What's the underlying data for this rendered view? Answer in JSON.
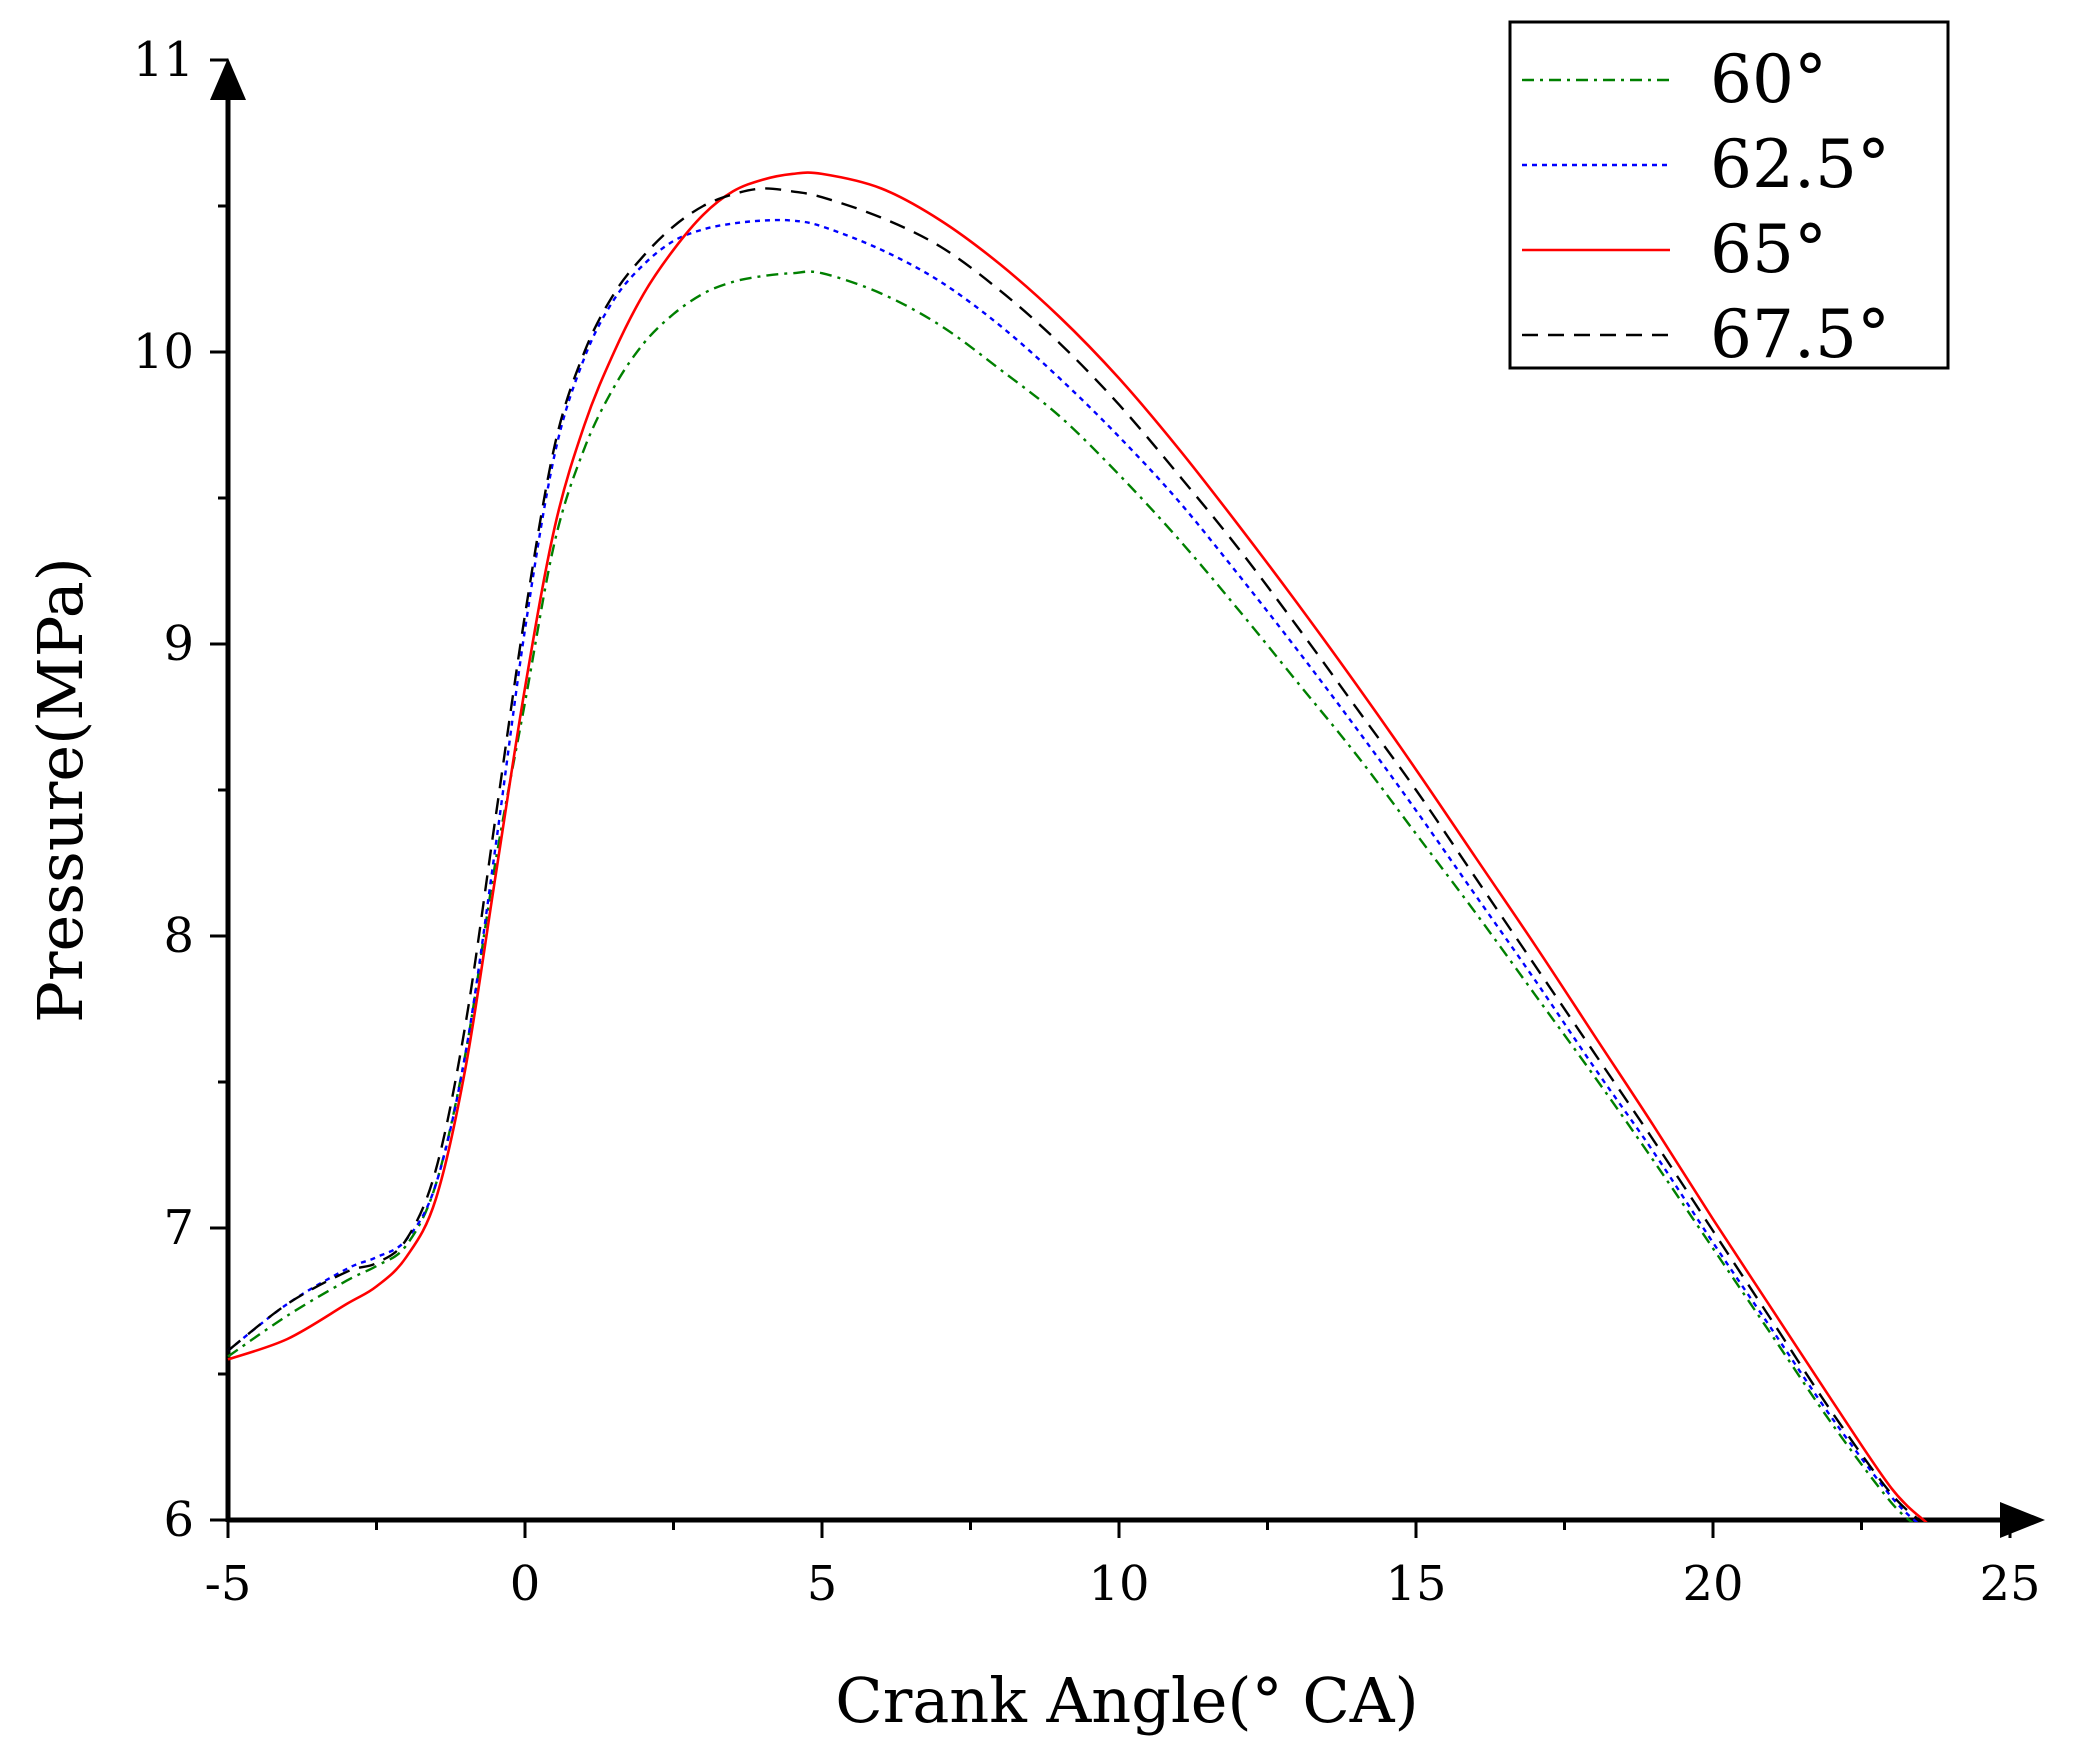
{
  "chart_data": {
    "type": "line",
    "title": "",
    "xlabel": "Crank Angle(° CA)",
    "ylabel": "Pressure(MPa)",
    "xlim": [
      -5,
      25
    ],
    "ylim": [
      6,
      11
    ],
    "xticks": [
      -5,
      0,
      5,
      10,
      15,
      20,
      25
    ],
    "xtick_labels": [
      "-5",
      "0",
      "5",
      "10",
      "15",
      "20",
      "25"
    ],
    "yticks": [
      6,
      7,
      8,
      9,
      10,
      11
    ],
    "ytick_labels": [
      "6",
      "7",
      "8",
      "9",
      "10",
      "11"
    ],
    "grid": false,
    "legend_position": "top-right",
    "series": [
      {
        "name": "60°",
        "color": "#008000",
        "dash": "dashdot",
        "x": [
          -5,
          -4,
          -3,
          -2.5,
          -2,
          -1.5,
          -1,
          -0.5,
          0,
          0.5,
          1,
          1.5,
          2,
          2.5,
          3,
          3.5,
          4,
          4.5,
          5,
          6,
          7,
          8,
          9,
          10,
          11,
          12,
          13,
          14,
          15,
          16,
          17,
          18,
          19,
          20,
          21,
          22,
          23,
          23.5
        ],
        "y": [
          6.56,
          6.7,
          6.82,
          6.87,
          6.94,
          7.15,
          7.6,
          8.25,
          8.8,
          9.35,
          9.67,
          9.88,
          10.03,
          10.13,
          10.2,
          10.24,
          10.26,
          10.27,
          10.27,
          10.2,
          10.09,
          9.94,
          9.78,
          9.58,
          9.36,
          9.12,
          8.87,
          8.62,
          8.35,
          8.08,
          7.8,
          7.52,
          7.23,
          6.93,
          6.63,
          6.33,
          6.06,
          5.97
        ]
      },
      {
        "name": "62.5°",
        "color": "#0000ff",
        "dash": "dotted",
        "x": [
          -5,
          -4,
          -3,
          -2.5,
          -2,
          -1.5,
          -1,
          -0.5,
          0,
          0.5,
          1,
          1.5,
          2,
          2.5,
          3,
          3.5,
          4,
          4.5,
          5,
          6,
          7,
          8,
          9,
          10,
          11,
          12,
          13,
          14,
          15,
          16,
          17,
          18,
          19,
          20,
          21,
          22,
          23,
          23.5
        ],
        "y": [
          6.58,
          6.74,
          6.86,
          6.9,
          6.96,
          7.15,
          7.6,
          8.3,
          9.05,
          9.65,
          9.98,
          10.18,
          10.3,
          10.38,
          10.42,
          10.44,
          10.45,
          10.45,
          10.43,
          10.35,
          10.24,
          10.09,
          9.91,
          9.71,
          9.49,
          9.24,
          8.98,
          8.71,
          8.43,
          8.14,
          7.85,
          7.55,
          7.26,
          6.95,
          6.65,
          6.35,
          6.08,
          5.98
        ]
      },
      {
        "name": "65°",
        "color": "#ff0000",
        "dash": "solid",
        "x": [
          -5,
          -4,
          -3,
          -2.5,
          -2,
          -1.5,
          -1,
          -0.5,
          0,
          0.5,
          1,
          1.5,
          2,
          2.5,
          3,
          3.5,
          4,
          4.5,
          5,
          6,
          7,
          8,
          9,
          10,
          11,
          12,
          13,
          14,
          15,
          16,
          17,
          18,
          19,
          20,
          21,
          22,
          23,
          23.6
        ],
        "y": [
          6.55,
          6.62,
          6.74,
          6.8,
          6.9,
          7.1,
          7.55,
          8.2,
          8.85,
          9.4,
          9.75,
          10.0,
          10.2,
          10.35,
          10.47,
          10.55,
          10.59,
          10.61,
          10.61,
          10.56,
          10.45,
          10.3,
          10.12,
          9.91,
          9.67,
          9.41,
          9.14,
          8.86,
          8.57,
          8.27,
          7.97,
          7.66,
          7.35,
          7.03,
          6.72,
          6.41,
          6.11,
          5.99
        ]
      },
      {
        "name": "67.5°",
        "color": "#000000",
        "dash": "dashed",
        "x": [
          -5,
          -4,
          -3,
          -2.5,
          -2,
          -1.5,
          -1,
          -0.5,
          0,
          0.5,
          1,
          1.5,
          2,
          2.5,
          3,
          3.5,
          4,
          4.5,
          5,
          6,
          7,
          8,
          9,
          10,
          11,
          12,
          13,
          14,
          15,
          16,
          17,
          18,
          19,
          20,
          21,
          22,
          23,
          23.6
        ],
        "y": [
          6.58,
          6.74,
          6.85,
          6.88,
          6.96,
          7.2,
          7.7,
          8.4,
          9.1,
          9.68,
          10.0,
          10.2,
          10.33,
          10.43,
          10.5,
          10.54,
          10.56,
          10.55,
          10.53,
          10.46,
          10.36,
          10.21,
          10.03,
          9.82,
          9.58,
          9.33,
          9.06,
          8.78,
          8.5,
          8.2,
          7.9,
          7.6,
          7.3,
          6.99,
          6.68,
          6.37,
          6.09,
          5.98
        ]
      }
    ]
  }
}
